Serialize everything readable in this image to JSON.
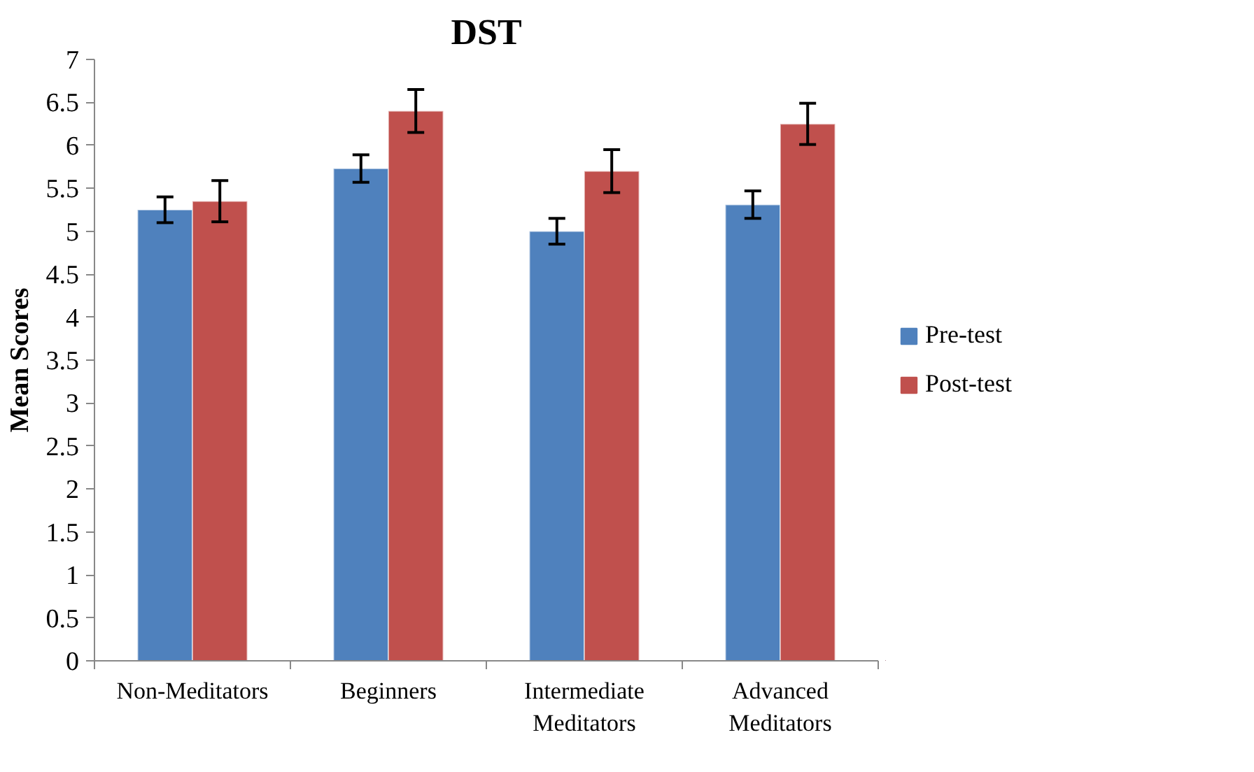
{
  "chart_data": {
    "type": "bar",
    "title": "DST",
    "ylabel": "Mean Scores",
    "categories": [
      "Non-Meditators",
      "Beginners",
      "Intermediate Meditators",
      "Advanced Meditators"
    ],
    "series": [
      {
        "name": "Pre-test",
        "color": "#4f81bd",
        "values": [
          5.25,
          5.73,
          5.0,
          5.31
        ],
        "errors": [
          0.15,
          0.16,
          0.15,
          0.16
        ]
      },
      {
        "name": "Post-test",
        "color": "#c0504d",
        "values": [
          5.35,
          6.4,
          5.7,
          6.25
        ],
        "errors": [
          0.24,
          0.25,
          0.25,
          0.24
        ]
      }
    ],
    "ylim": [
      0,
      7
    ],
    "yticks": [
      0,
      0.5,
      1,
      1.5,
      2,
      2.5,
      3,
      3.5,
      4,
      4.5,
      5,
      5.5,
      6,
      6.5,
      7
    ],
    "grid": false,
    "legend": "right"
  }
}
